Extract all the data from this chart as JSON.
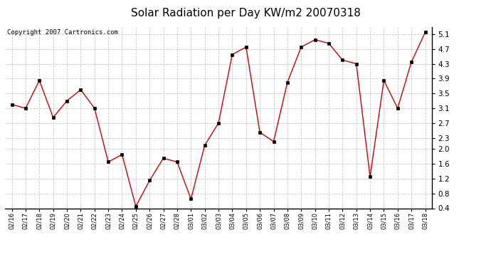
{
  "title": "Solar Radiation per Day KW/m2 20070318",
  "copyright_text": "Copyright 2007 Cartronics.com",
  "dates": [
    "02/16",
    "02/17",
    "02/18",
    "02/19",
    "02/20",
    "02/21",
    "02/22",
    "02/23",
    "02/24",
    "02/25",
    "02/26",
    "02/27",
    "02/28",
    "03/01",
    "03/02",
    "03/03",
    "03/04",
    "03/05",
    "03/06",
    "03/07",
    "03/08",
    "03/09",
    "03/10",
    "03/11",
    "03/12",
    "03/13",
    "03/14",
    "03/15",
    "03/16",
    "03/17",
    "03/18"
  ],
  "values": [
    3.2,
    3.1,
    3.85,
    2.85,
    3.3,
    3.6,
    3.1,
    1.65,
    1.85,
    0.45,
    1.15,
    1.75,
    1.65,
    0.65,
    2.1,
    2.7,
    4.55,
    4.75,
    2.45,
    2.2,
    3.8,
    4.75,
    4.95,
    4.85,
    4.4,
    4.3,
    1.25,
    3.85,
    3.1,
    4.35,
    5.15
  ],
  "line_color": "#cc0000",
  "marker_color": "#000000",
  "bg_color": "#ffffff",
  "grid_color": "#c8c8c8",
  "ylim": [
    0.4,
    5.3
  ],
  "yticks": [
    0.4,
    0.8,
    1.2,
    1.6,
    2.0,
    2.3,
    2.7,
    3.1,
    3.5,
    3.9,
    4.3,
    4.7,
    5.1
  ],
  "title_fontsize": 11,
  "copyright_fontsize": 6.5,
  "tick_fontsize": 7.5,
  "xtick_fontsize": 6.0
}
